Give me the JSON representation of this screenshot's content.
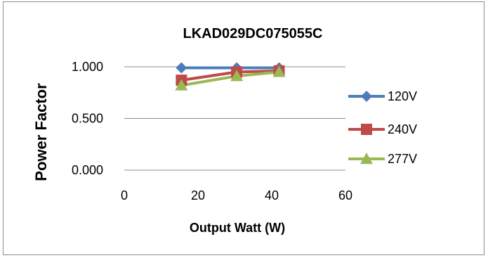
{
  "chart_data": {
    "type": "line",
    "title": "LKAD029DC075055C",
    "xlabel": "Output Watt (W)",
    "ylabel": "Power Factor",
    "xlim": [
      0,
      60
    ],
    "ylim": [
      0,
      1
    ],
    "x_ticks": [
      "0",
      "20",
      "40",
      "60"
    ],
    "y_ticks": [
      "0.000",
      "0.500",
      "1.000"
    ],
    "grid": "horizontal",
    "legend_position": "right",
    "series": [
      {
        "name": "120V",
        "color": "#4a7ebb",
        "marker": "diamond",
        "x": [
          15.5,
          30.5,
          42
        ],
        "y": [
          0.99,
          0.99,
          0.99
        ]
      },
      {
        "name": "240V",
        "color": "#be4b48",
        "marker": "square",
        "x": [
          15.5,
          30.5,
          42
        ],
        "y": [
          0.87,
          0.95,
          0.96
        ]
      },
      {
        "name": "277V",
        "color": "#98b954",
        "marker": "triangle",
        "x": [
          15.5,
          30.5,
          42
        ],
        "y": [
          0.82,
          0.91,
          0.95
        ]
      }
    ]
  }
}
